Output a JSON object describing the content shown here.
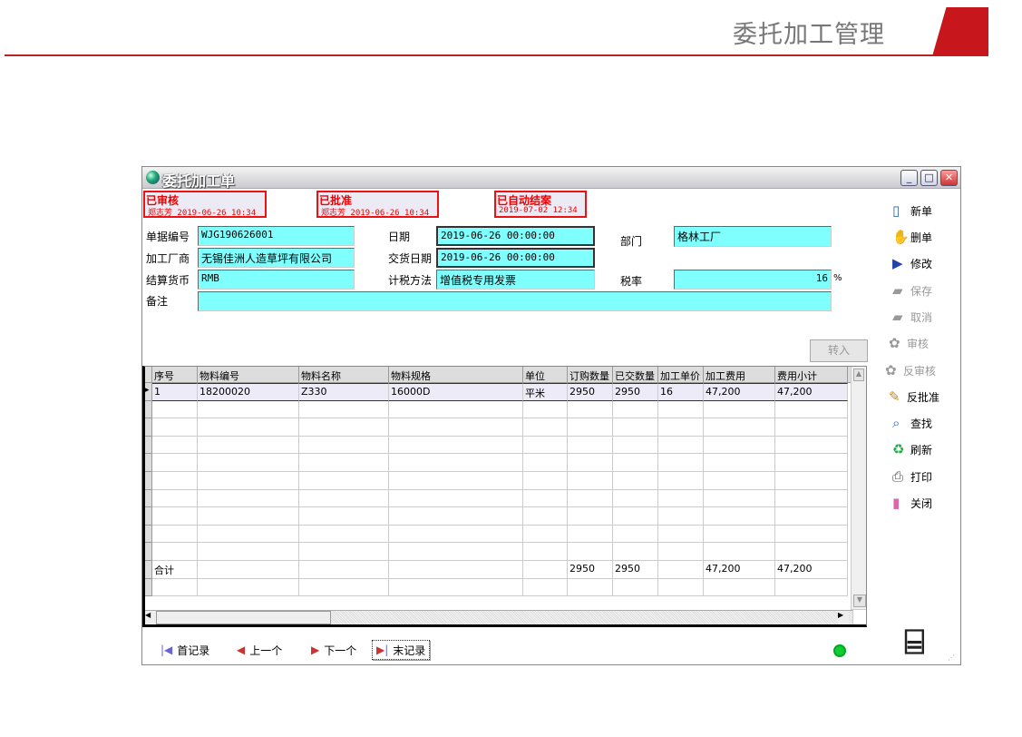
{
  "page_title": "委托加工管理",
  "window": {
    "title": "委托加工单"
  },
  "status": [
    {
      "label": "已审核",
      "detail": "郑志芳 2019-06-26 10:34"
    },
    {
      "label": "已批准",
      "detail": "郑志芳 2019-06-26 10:34"
    },
    {
      "label": "已自动结案",
      "detail": "2019-07-02 12:34"
    }
  ],
  "form": {
    "doc_no_label": "单据编号",
    "doc_no": "WJG190626001",
    "date_label": "日期",
    "date": "2019-06-26 00:00:00",
    "dept_label": "部门",
    "dept": "格林工厂",
    "vendor_label": "加工厂商",
    "vendor": "无锡佳洲人造草坪有限公司",
    "delivery_label": "交货日期",
    "delivery": "2019-06-26 00:00:00",
    "currency_label": "结算货币",
    "currency": "RMB",
    "tax_method_label": "计税方法",
    "tax_method": "增值税专用发票",
    "tax_rate_label": "税率",
    "tax_rate": "16",
    "tax_unit": "%",
    "remark_label": "备注",
    "remark": ""
  },
  "import_button": "转入",
  "grid": {
    "columns": [
      "序号",
      "物料编号",
      "物料名称",
      "物料规格",
      "单位",
      "订购数量",
      "已交数量",
      "加工单价",
      "加工费用",
      "费用小计"
    ],
    "rows": [
      [
        "1",
        "18200020",
        "Z330",
        "16000D",
        "平米",
        "2950",
        "2950",
        "16",
        "47,200",
        "47,200"
      ]
    ],
    "total": [
      "合计",
      "",
      "",
      "",
      "",
      "2950",
      "2950",
      "",
      "47,200",
      "47,200"
    ]
  },
  "toolbar": [
    {
      "label": "新单",
      "icon": "new-doc-icon",
      "enabled": true
    },
    {
      "label": "删单",
      "icon": "delete-doc-icon",
      "enabled": true
    },
    {
      "label": "修改",
      "icon": "edit-icon",
      "enabled": true
    },
    {
      "label": "保存",
      "icon": "save-icon",
      "enabled": false
    },
    {
      "label": "取消",
      "icon": "cancel-icon",
      "enabled": false
    },
    {
      "label": "审核",
      "icon": "audit-icon",
      "enabled": false
    },
    {
      "label": "反审核",
      "icon": "unaudit-icon",
      "enabled": false
    },
    {
      "label": "反批准",
      "icon": "pencil-icon",
      "enabled": true
    },
    {
      "label": "查找",
      "icon": "search-icon",
      "enabled": true
    },
    {
      "label": "刷新",
      "icon": "refresh-icon",
      "enabled": true
    },
    {
      "label": "打印",
      "icon": "print-icon",
      "enabled": true
    },
    {
      "label": "关闭",
      "icon": "close-icon",
      "enabled": true
    }
  ],
  "nav": {
    "first": "首记录",
    "prev": "上一个",
    "next": "下一个",
    "last": "末记录"
  },
  "colors": {
    "accent": "#c8161d",
    "field": "#80ffff",
    "status": "#ee1111"
  }
}
